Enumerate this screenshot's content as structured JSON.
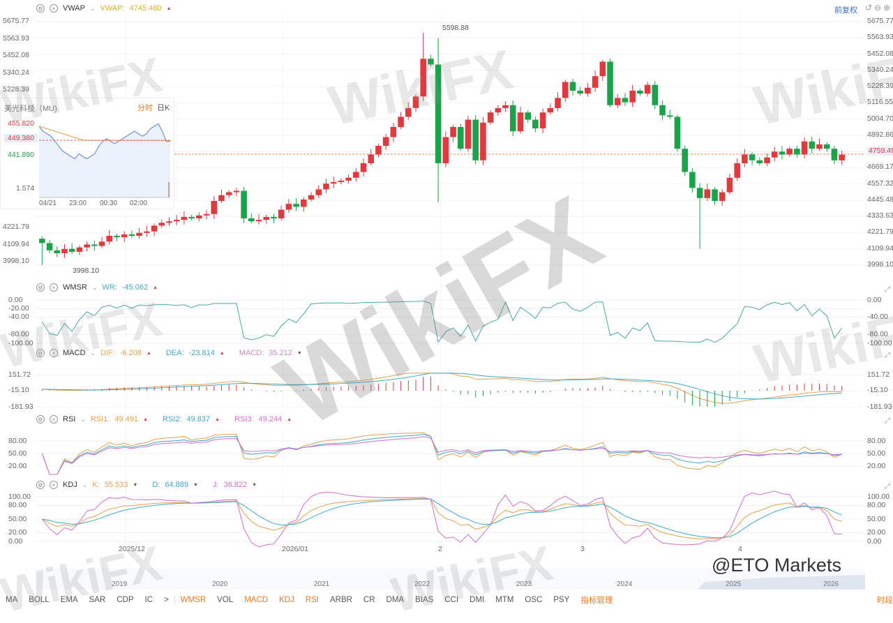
{
  "main": {
    "indicator": "VWAP",
    "label": "VWAP:",
    "value": "4745.480",
    "color": "#e0b030",
    "adjust": "前复权",
    "left_axis": [
      "5675.77",
      "5563.93",
      "5452.08",
      "5340.24",
      "5228.39",
      "",
      "",
      "",
      "",
      "",
      "",
      "",
      "4221.79",
      "4109.94",
      "3998.10"
    ],
    "right_axis": [
      "5675.77",
      "5563.93",
      "5452.08",
      "5340.24",
      "5228.39",
      "5116.55",
      "5004.70",
      "4892.86",
      "4759.49",
      "4669.17",
      "4557.32",
      "4445.48",
      "4333.63",
      "4221.79",
      "4109.94",
      "3998.10"
    ],
    "current_price": "4759.49",
    "high_label": "5598.88",
    "low_label": "3998.10"
  },
  "inset": {
    "title": "美光科技（MU)",
    "tabs": [
      "分时",
      "日K"
    ],
    "prices": [
      "455.820",
      "449.380",
      "441.890"
    ],
    "volume": "1.574",
    "times": [
      "04/21",
      "23:00",
      "00:30",
      "02:00"
    ],
    "series": [
      455,
      453,
      452,
      451,
      449,
      447,
      445,
      444,
      443,
      442,
      444,
      443,
      442,
      443,
      444,
      447,
      449,
      450,
      449,
      448,
      449,
      450,
      451,
      452,
      453,
      452,
      451,
      452,
      454,
      455,
      456,
      453,
      449,
      449
    ]
  },
  "wmsr": {
    "name": "WMSR",
    "label": "WR:",
    "value": "-45.062",
    "axis": [
      "0.00",
      "-20.00",
      "-40.00",
      "-80.00",
      "-100.00"
    ],
    "axis_r": [
      "0.00",
      "-40.00",
      "-80.00",
      "-100.00"
    ]
  },
  "macd": {
    "name": "MACD",
    "dif_label": "DIF:",
    "dif": "-6.208",
    "dea_label": "DEA:",
    "dea": "-23.814",
    "macd_label": "MACD:",
    "macd": "35.212",
    "axis": [
      "151.72",
      "-15.10",
      "-181.93"
    ]
  },
  "rsi": {
    "name": "RSI",
    "r1_label": "RSI1:",
    "r1": "49.491",
    "r2_label": "RSI2:",
    "r2": "49.837",
    "r3_label": "RSI3:",
    "r3": "49.244",
    "axis": [
      "80.00",
      "50.00",
      "20.00"
    ]
  },
  "kdj": {
    "name": "KDJ",
    "k_label": "K:",
    "k": "55.533",
    "d_label": "D:",
    "d": "64.889",
    "j_label": "J:",
    "j": "36.822",
    "axis": [
      "100.00",
      "80.00",
      "50.00",
      "20.00",
      "0.00"
    ]
  },
  "dates": [
    "2025/12",
    "2026/01",
    "2",
    "3",
    "4"
  ],
  "years": [
    "2019",
    "2020",
    "2021",
    "2022",
    "2023",
    "2024",
    "2025",
    "2026"
  ],
  "toolbar": {
    "left": [
      "MA",
      "BOLL",
      "EMA",
      "SAR",
      "CDP",
      "IC"
    ],
    "more": ">",
    "items": [
      {
        "t": "WMSR",
        "on": true
      },
      {
        "t": "VOL",
        "on": false
      },
      {
        "t": "MACD",
        "on": true
      },
      {
        "t": "KDJ",
        "on": true
      },
      {
        "t": "RSI",
        "on": true
      },
      {
        "t": "ARBR",
        "on": false
      },
      {
        "t": "CR",
        "on": false
      },
      {
        "t": "DMA",
        "on": false
      },
      {
        "t": "BIAS",
        "on": false
      },
      {
        "t": "CCI",
        "on": false
      },
      {
        "t": "DMI",
        "on": false
      },
      {
        "t": "MTM",
        "on": false
      },
      {
        "t": "OSC",
        "on": false
      },
      {
        "t": "PSY",
        "on": false
      }
    ],
    "manage": "指标管理",
    "right": "时段"
  },
  "watermarks": {
    "logo": "WikiFX",
    "credit": "@ETO Markets"
  },
  "colors": {
    "up": "#e0393e",
    "down": "#1aa34a",
    "wr": "#4aa8a0",
    "dif": "#e8a050",
    "dea": "#40a8c8",
    "macd": "#d080c0",
    "k": "#e8a050",
    "d": "#40a8c8",
    "j": "#d070d0"
  },
  "chart_data": {
    "type": "candlestick",
    "ylim": [
      3998.1,
      5675.77
    ],
    "close": [
      4150,
      4100,
      4080,
      4110,
      4090,
      4120,
      4140,
      4130,
      4160,
      4200,
      4190,
      4210,
      4200,
      4220,
      4230,
      4270,
      4290,
      4300,
      4310,
      4330,
      4320,
      4340,
      4350,
      4440,
      4480,
      4500,
      4510,
      4320,
      4300,
      4310,
      4330,
      4320,
      4380,
      4420,
      4400,
      4450,
      4480,
      4520,
      4560,
      4570,
      4580,
      4600,
      4640,
      4700,
      4760,
      4820,
      4880,
      4950,
      5020,
      5080,
      5160,
      5420,
      5380,
      4700,
      4880,
      4950,
      4800,
      5000,
      4720,
      4980,
      5050,
      5080,
      5100,
      4920,
      5050,
      5000,
      4940,
      5050,
      5080,
      5150,
      5260,
      5200,
      5180,
      5220,
      5300,
      5400,
      5100,
      5150,
      5120,
      5200,
      5180,
      5240,
      5100,
      5030,
      5020,
      4800,
      4640,
      4530,
      4460,
      4520,
      4440,
      4500,
      4600,
      4700,
      4760,
      4720,
      4700,
      4740,
      4780,
      4760,
      4800,
      4760,
      4850,
      4800,
      4830,
      4800,
      4720,
      4759
    ]
  }
}
